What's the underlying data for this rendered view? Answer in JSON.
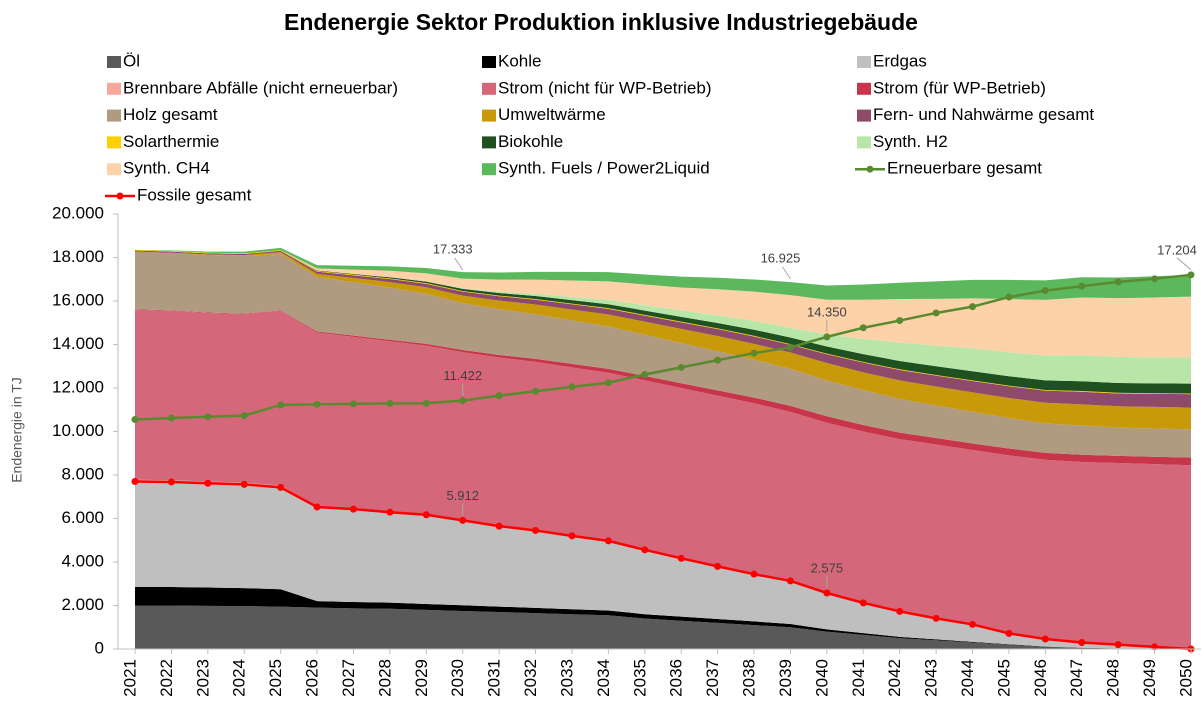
{
  "chart_data": {
    "type": "stacked-area",
    "title": "Endenergie Sektor Produktion inklusive Industriegebäude",
    "y_label": "Endenergie in TJ",
    "categories": [
      "2021",
      "2022",
      "2023",
      "2024",
      "2025",
      "2026",
      "2027",
      "2028",
      "2029",
      "2030",
      "2031",
      "2032",
      "2033",
      "2034",
      "2035",
      "2036",
      "2037",
      "2038",
      "2039",
      "2040",
      "2041",
      "2042",
      "2043",
      "2044",
      "2045",
      "2046",
      "2047",
      "2048",
      "2049",
      "2050"
    ],
    "ylim": [
      0,
      20000
    ],
    "yticks": [
      0,
      {
        "value": 2000,
        "label": "2.000"
      },
      {
        "value": 4000,
        "label": "4.000"
      },
      {
        "value": 6000,
        "label": "6.000"
      },
      {
        "value": 8000,
        "label": "8.000"
      },
      {
        "value": 10000,
        "label": "10.000"
      },
      {
        "value": 12000,
        "label": "12.000"
      },
      {
        "value": 14000,
        "label": "14.000"
      },
      {
        "value": 16000,
        "label": "16.000"
      },
      {
        "value": 18000,
        "label": "18.000"
      },
      {
        "value": 20000,
        "label": "20.000"
      }
    ],
    "legend": "top",
    "series": [
      {
        "name": "Öl",
        "color": "#595959",
        "values": [
          2000,
          2000,
          1980,
          1970,
          1950,
          1900,
          1870,
          1850,
          1800,
          1750,
          1700,
          1650,
          1600,
          1550,
          1400,
          1300,
          1200,
          1100,
          1000,
          800,
          650,
          500,
          400,
          300,
          200,
          100,
          60,
          30,
          10,
          0
        ]
      },
      {
        "name": "Kohle",
        "color": "#000000",
        "values": [
          850,
          850,
          850,
          830,
          800,
          300,
          290,
          280,
          270,
          260,
          250,
          240,
          230,
          220,
          200,
          190,
          180,
          170,
          150,
          100,
          80,
          60,
          40,
          30,
          20,
          10,
          0,
          0,
          0,
          0
        ]
      },
      {
        "name": "Erdgas",
        "color": "#bfbfbf",
        "values": [
          4850,
          4830,
          4790,
          4770,
          4680,
          4330,
          4270,
          4160,
          4100,
          3902,
          3700,
          3560,
          3370,
          3200,
          2960,
          2680,
          2420,
          2170,
          1980,
          1675,
          1390,
          1170,
          970,
          800,
          500,
          350,
          240,
          170,
          90,
          0
        ]
      },
      {
        "name": "Brennbare Abfälle (nicht erneuerbar)",
        "color": "#f4a99a",
        "values": [
          80,
          80,
          80,
          80,
          80,
          40,
          40,
          40,
          40,
          40,
          40,
          40,
          40,
          40,
          40,
          0,
          0,
          0,
          0,
          0,
          0,
          0,
          0,
          0,
          0,
          0,
          0,
          0,
          0,
          0
        ]
      },
      {
        "name": "Strom (nicht für WP-Betrieb)",
        "color": "#d4687a",
        "values": [
          7820,
          7790,
          7750,
          7750,
          8040,
          7980,
          7880,
          7820,
          7740,
          7698,
          7710,
          7710,
          7710,
          7690,
          7750,
          7830,
          7850,
          7860,
          7770,
          7825,
          7880,
          7920,
          7990,
          8020,
          8180,
          8240,
          8300,
          8350,
          8400,
          8450
        ]
      },
      {
        "name": "Strom (für WP-Betrieb)",
        "color": "#c8354a",
        "values": [
          20,
          20,
          20,
          20,
          20,
          50,
          60,
          70,
          80,
          100,
          120,
          140,
          160,
          180,
          200,
          220,
          240,
          260,
          280,
          300,
          300,
          300,
          300,
          300,
          320,
          320,
          330,
          330,
          340,
          350
        ]
      },
      {
        "name": "Holz gesamt",
        "color": "#b09a80",
        "values": [
          2650,
          2650,
          2650,
          2650,
          2600,
          2500,
          2450,
          2400,
          2300,
          2150,
          2100,
          2050,
          2000,
          1950,
          1900,
          1850,
          1800,
          1750,
          1700,
          1650,
          1600,
          1550,
          1500,
          1450,
          1400,
          1350,
          1350,
          1300,
          1300,
          1300
        ]
      },
      {
        "name": "Umweltwärme",
        "color": "#c89a0a",
        "values": [
          0,
          0,
          20,
          40,
          80,
          150,
          200,
          250,
          300,
          350,
          400,
          450,
          500,
          550,
          600,
          650,
          700,
          720,
          750,
          800,
          820,
          850,
          870,
          900,
          920,
          950,
          970,
          980,
          990,
          1000
        ]
      },
      {
        "name": "Fern- und Nahwärme gesamt",
        "color": "#8e4a6b",
        "values": [
          50,
          50,
          50,
          50,
          60,
          100,
          120,
          140,
          160,
          180,
          200,
          220,
          240,
          260,
          280,
          300,
          320,
          340,
          360,
          400,
          450,
          480,
          500,
          520,
          540,
          560,
          580,
          590,
          600,
          620
        ]
      },
      {
        "name": "Solarthermie",
        "color": "#ffd000",
        "values": [
          30,
          30,
          30,
          30,
          30,
          30,
          30,
          30,
          30,
          30,
          30,
          30,
          30,
          30,
          30,
          30,
          30,
          30,
          30,
          30,
          30,
          30,
          30,
          30,
          30,
          30,
          30,
          30,
          30,
          30
        ]
      },
      {
        "name": "Biokohle",
        "color": "#1e5020",
        "values": [
          0,
          0,
          0,
          0,
          0,
          20,
          30,
          50,
          70,
          100,
          120,
          140,
          160,
          180,
          200,
          220,
          250,
          280,
          300,
          330,
          360,
          380,
          400,
          420,
          430,
          440,
          450,
          450,
          450,
          450
        ]
      },
      {
        "name": "Synth. H2",
        "color": "#b8e6a8",
        "values": [
          0,
          0,
          0,
          0,
          0,
          0,
          0,
          0,
          0,
          20,
          60,
          100,
          150,
          200,
          250,
          300,
          350,
          400,
          450,
          550,
          700,
          850,
          950,
          1050,
          1100,
          1150,
          1200,
          1200,
          1200,
          1200
        ]
      },
      {
        "name": "Synth. CH4",
        "color": "#fdd2a8",
        "values": [
          0,
          0,
          0,
          0,
          0,
          100,
          200,
          300,
          380,
          450,
          550,
          650,
          750,
          850,
          950,
          1050,
          1200,
          1350,
          1500,
          1600,
          1800,
          2000,
          2150,
          2300,
          2450,
          2550,
          2650,
          2700,
          2750,
          2800
        ]
      },
      {
        "name": "Synth. Fuels / Power2Liquid",
        "color": "#5cb85c",
        "values": [
          0,
          30,
          50,
          80,
          100,
          150,
          180,
          200,
          250,
          300,
          330,
          360,
          400,
          430,
          460,
          500,
          530,
          560,
          600,
          650,
          700,
          750,
          800,
          850,
          880,
          900,
          930,
          950,
          980,
          1000
        ]
      },
      {
        "name": "Erneuerbare gesamt",
        "color": "#5a8a30",
        "kind": "line",
        "values": [
          10550,
          10620,
          10680,
          10730,
          11220,
          11250,
          11270,
          11290,
          11300,
          11422,
          11650,
          11850,
          12050,
          12240,
          12620,
          12950,
          13280,
          13600,
          13870,
          14350,
          14770,
          15100,
          15450,
          15740,
          16180,
          16480,
          16680,
          16880,
          17020,
          17204
        ],
        "value_labels": [
          null,
          null,
          null,
          null,
          null,
          null,
          null,
          null,
          null,
          "11.422",
          null,
          null,
          null,
          null,
          null,
          null,
          null,
          null,
          null,
          "14.350",
          null,
          null,
          null,
          null,
          null,
          null,
          null,
          null,
          null,
          "17.204"
        ]
      },
      {
        "name": "Fossile gesamt",
        "color": "#ff0000",
        "kind": "line",
        "values": [
          7700,
          7680,
          7620,
          7570,
          7430,
          6530,
          6430,
          6290,
          6170,
          5912,
          5650,
          5450,
          5200,
          4970,
          4560,
          4170,
          3800,
          3440,
          3130,
          2575,
          2120,
          1730,
          1410,
          1130,
          720,
          460,
          300,
          200,
          100,
          0
        ],
        "value_labels": [
          null,
          null,
          null,
          null,
          null,
          null,
          null,
          null,
          null,
          "5.912",
          null,
          null,
          null,
          null,
          null,
          null,
          null,
          null,
          null,
          "2.575",
          null,
          null,
          null,
          null,
          null,
          null,
          null,
          null,
          null,
          null
        ]
      }
    ],
    "annotations": [
      {
        "text": "17.333",
        "value": 17333,
        "x": "2030"
      },
      {
        "text": "16.925",
        "value": 16925,
        "x": "2039"
      }
    ]
  }
}
